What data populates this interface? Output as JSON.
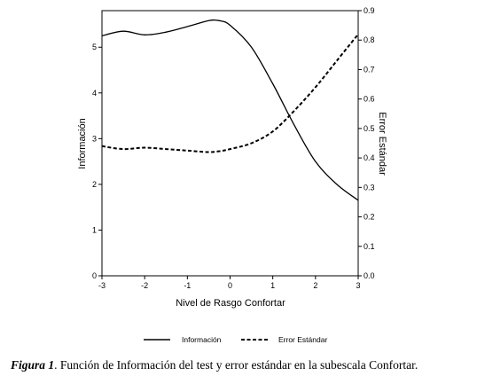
{
  "chart_data": {
    "type": "line",
    "xlabel": "Nivel de Rasgo Confortar",
    "ylabel": "Información",
    "y2label": "Error Estándar",
    "xlim": [
      -3,
      3
    ],
    "ylim": [
      0,
      5.8
    ],
    "y2lim": [
      0,
      0.9
    ],
    "xticks": [
      -3,
      -2,
      -1,
      0,
      1,
      2,
      3
    ],
    "yticks": [
      0,
      1,
      2,
      3,
      4,
      5
    ],
    "y2ticks": [
      0.0,
      0.1,
      0.2,
      0.3,
      0.4,
      0.5,
      0.6,
      0.7,
      0.8,
      0.9
    ],
    "x": [
      -3.0,
      -2.5,
      -2.0,
      -1.5,
      -1.0,
      -0.5,
      -0.25,
      0.0,
      0.5,
      1.0,
      1.5,
      2.0,
      2.5,
      3.0
    ],
    "series": [
      {
        "name": "Información",
        "axis": "left",
        "style": "solid",
        "values": [
          5.25,
          5.35,
          5.27,
          5.33,
          5.45,
          5.58,
          5.58,
          5.48,
          5.0,
          4.2,
          3.3,
          2.5,
          2.0,
          1.65
        ]
      },
      {
        "name": "Error Estándar",
        "axis": "right",
        "style": "dashed",
        "values": [
          0.44,
          0.43,
          0.435,
          0.43,
          0.425,
          0.42,
          0.423,
          0.43,
          0.45,
          0.49,
          0.56,
          0.64,
          0.73,
          0.82
        ]
      }
    ],
    "legend": "bottom"
  },
  "caption": {
    "lead": "Figura 1",
    "text": ". Función de Información del test y error estándar en la subescala Confortar."
  }
}
